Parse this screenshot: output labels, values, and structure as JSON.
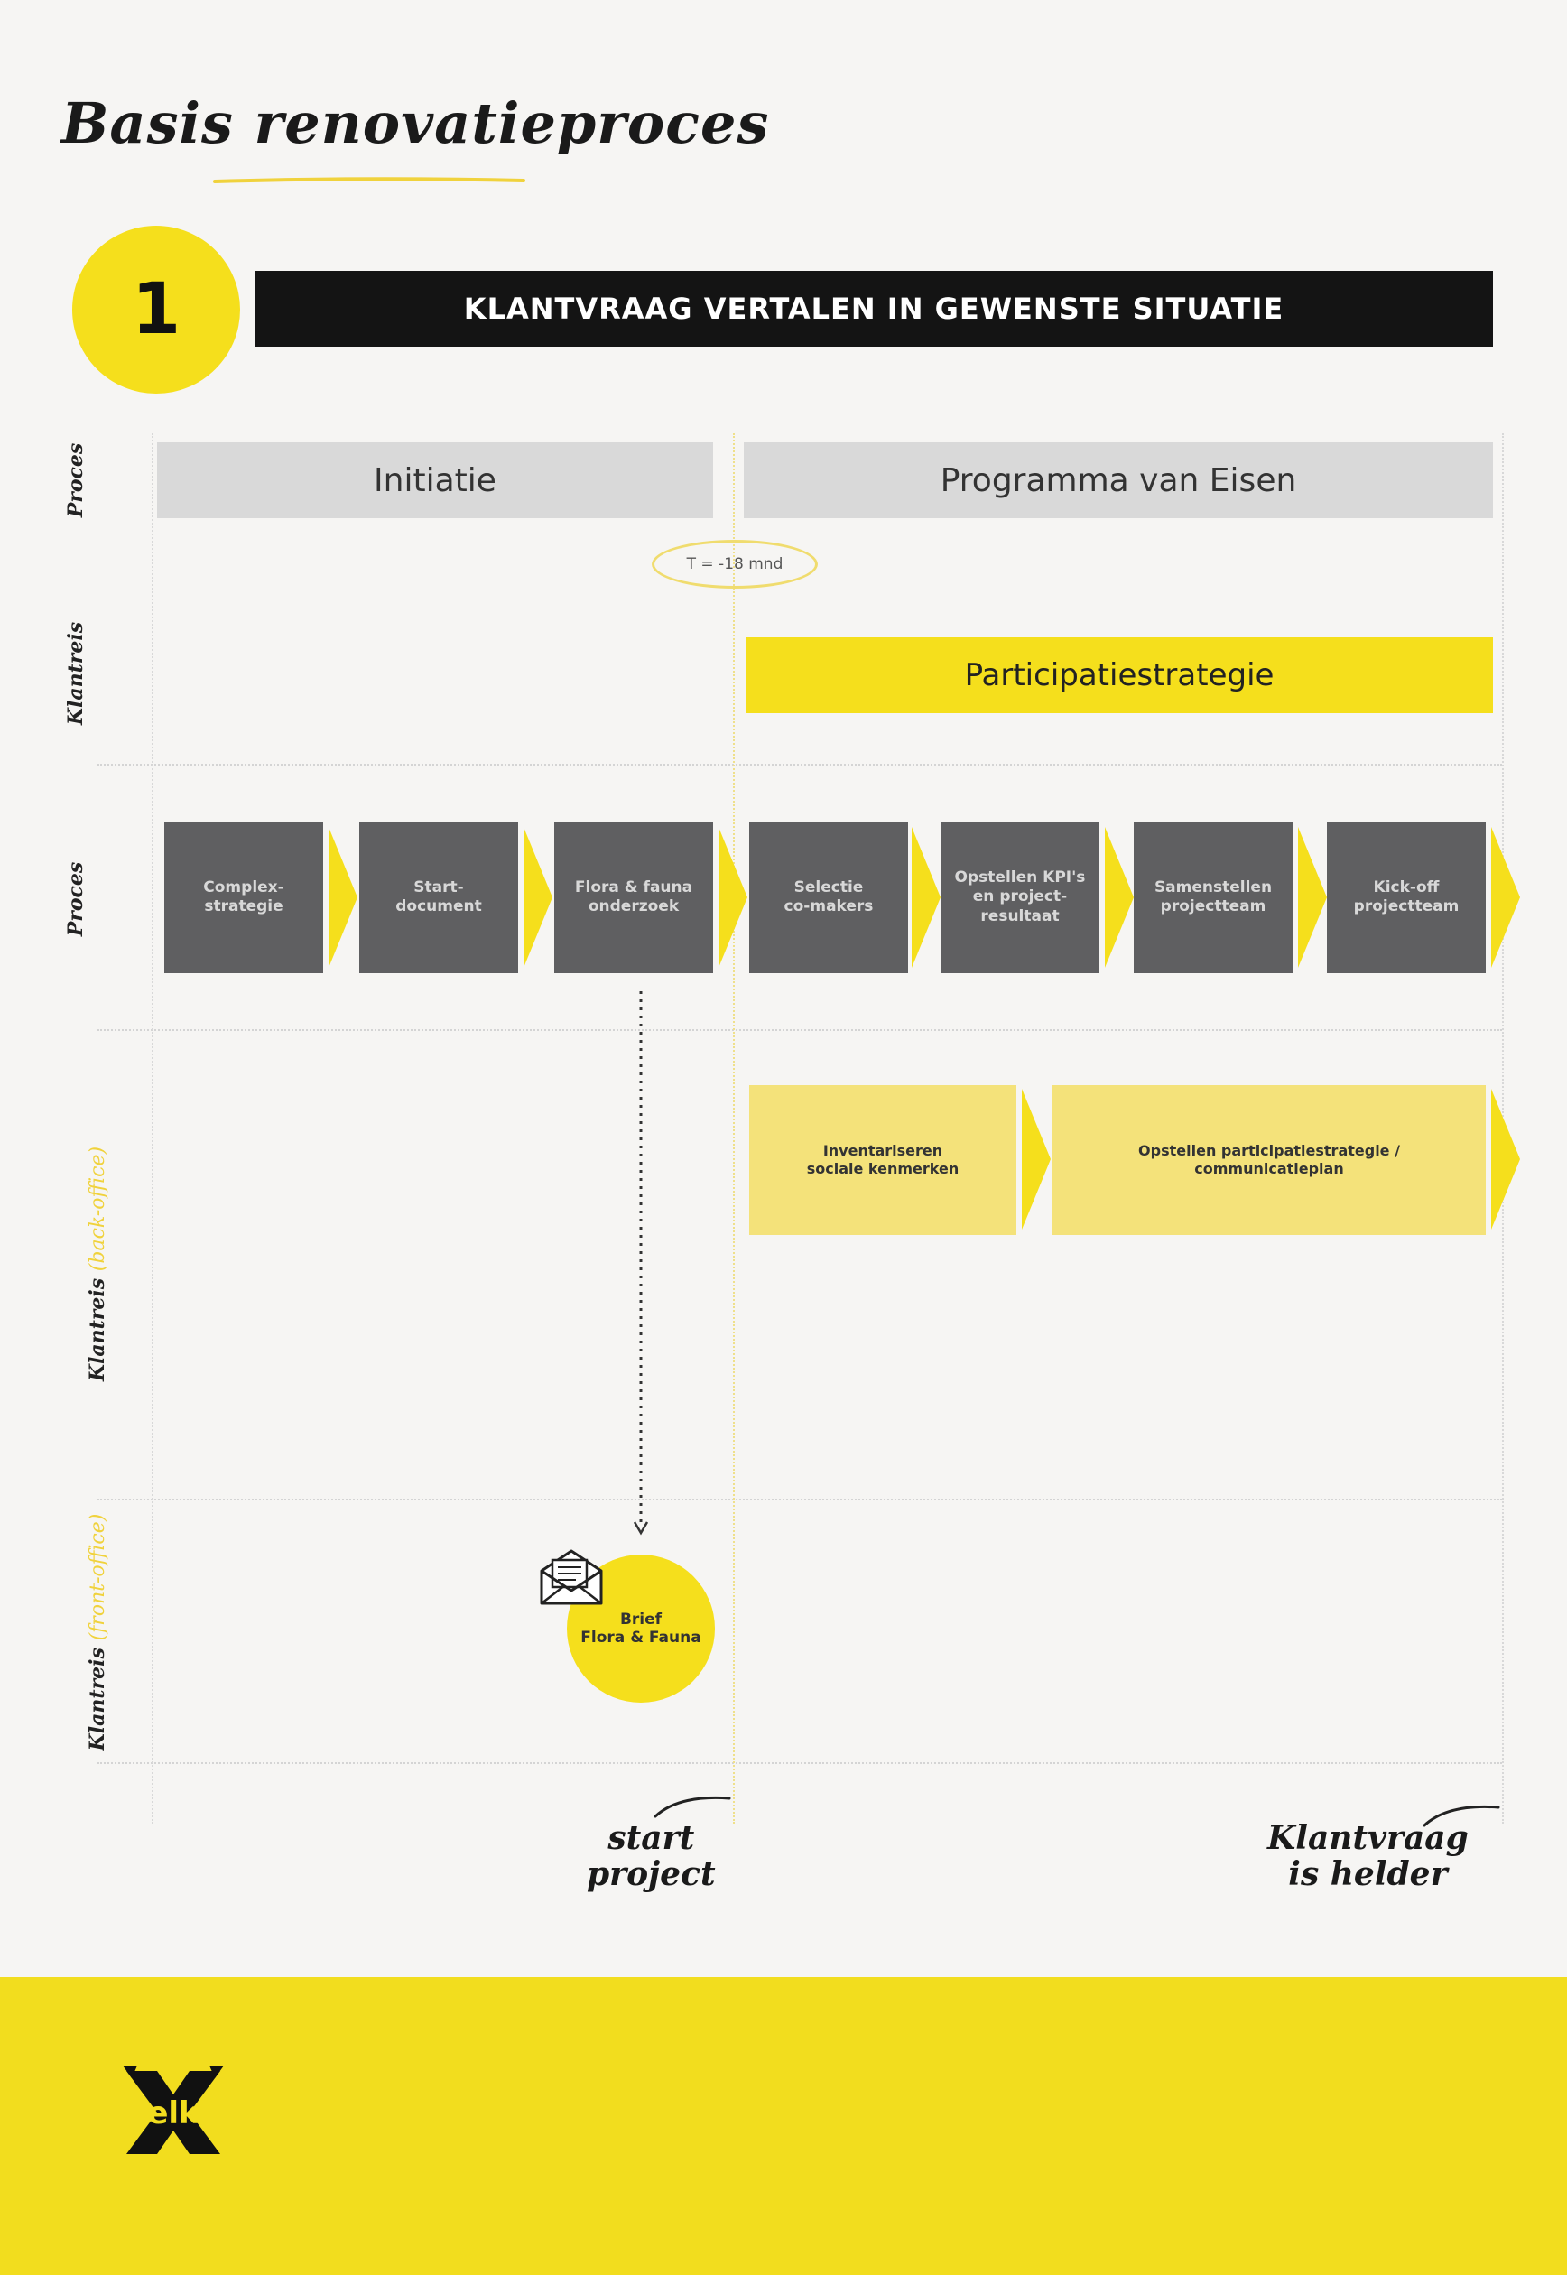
{
  "title": "Basis renovatieproces",
  "step": {
    "number": "1",
    "heading": "KLANTVRAAG VERTALEN IN GEWENSTE SITUATIE"
  },
  "lanes": {
    "proces_top": "Proces",
    "klantreis_top": "Klantreis",
    "proces_main": "Proces",
    "klantreis_back": {
      "label": "Klantreis",
      "sub": "(back-office)"
    },
    "klantreis_front": {
      "label": "Klantreis",
      "sub": "(front-office)"
    }
  },
  "phases": [
    "Initiatie",
    "Programma van Eisen"
  ],
  "timeline_marker": "T = -18 mnd",
  "strategy_label": "Participatiestrategie",
  "process_steps": [
    "Complex-\nstrategie",
    "Start-\ndocument",
    "Flora & fauna\nonderzoek",
    "Selectie\nco-makers",
    "Opstellen KPI's\nen project-\nresultaat",
    "Samenstellen\nprojectteam",
    "Kick-off\nprojectteam"
  ],
  "backoffice_steps": [
    "Inventariseren\nsociale kenmerken",
    "Opstellen participatiestrategie /\ncommunicatieplan"
  ],
  "frontoffice_item": {
    "label": "Brief\nFlora & Fauna",
    "icon": "envelope-icon"
  },
  "notes": {
    "start": "start\nproject",
    "end": "Klantvraag\nis helder"
  },
  "logo_text": "elk",
  "colors": {
    "yellow": "#f5df1c",
    "light_yellow": "#f4e27a",
    "dark_gray": "#5f5f61",
    "light_gray": "#d9d9d9",
    "black": "#141414"
  }
}
